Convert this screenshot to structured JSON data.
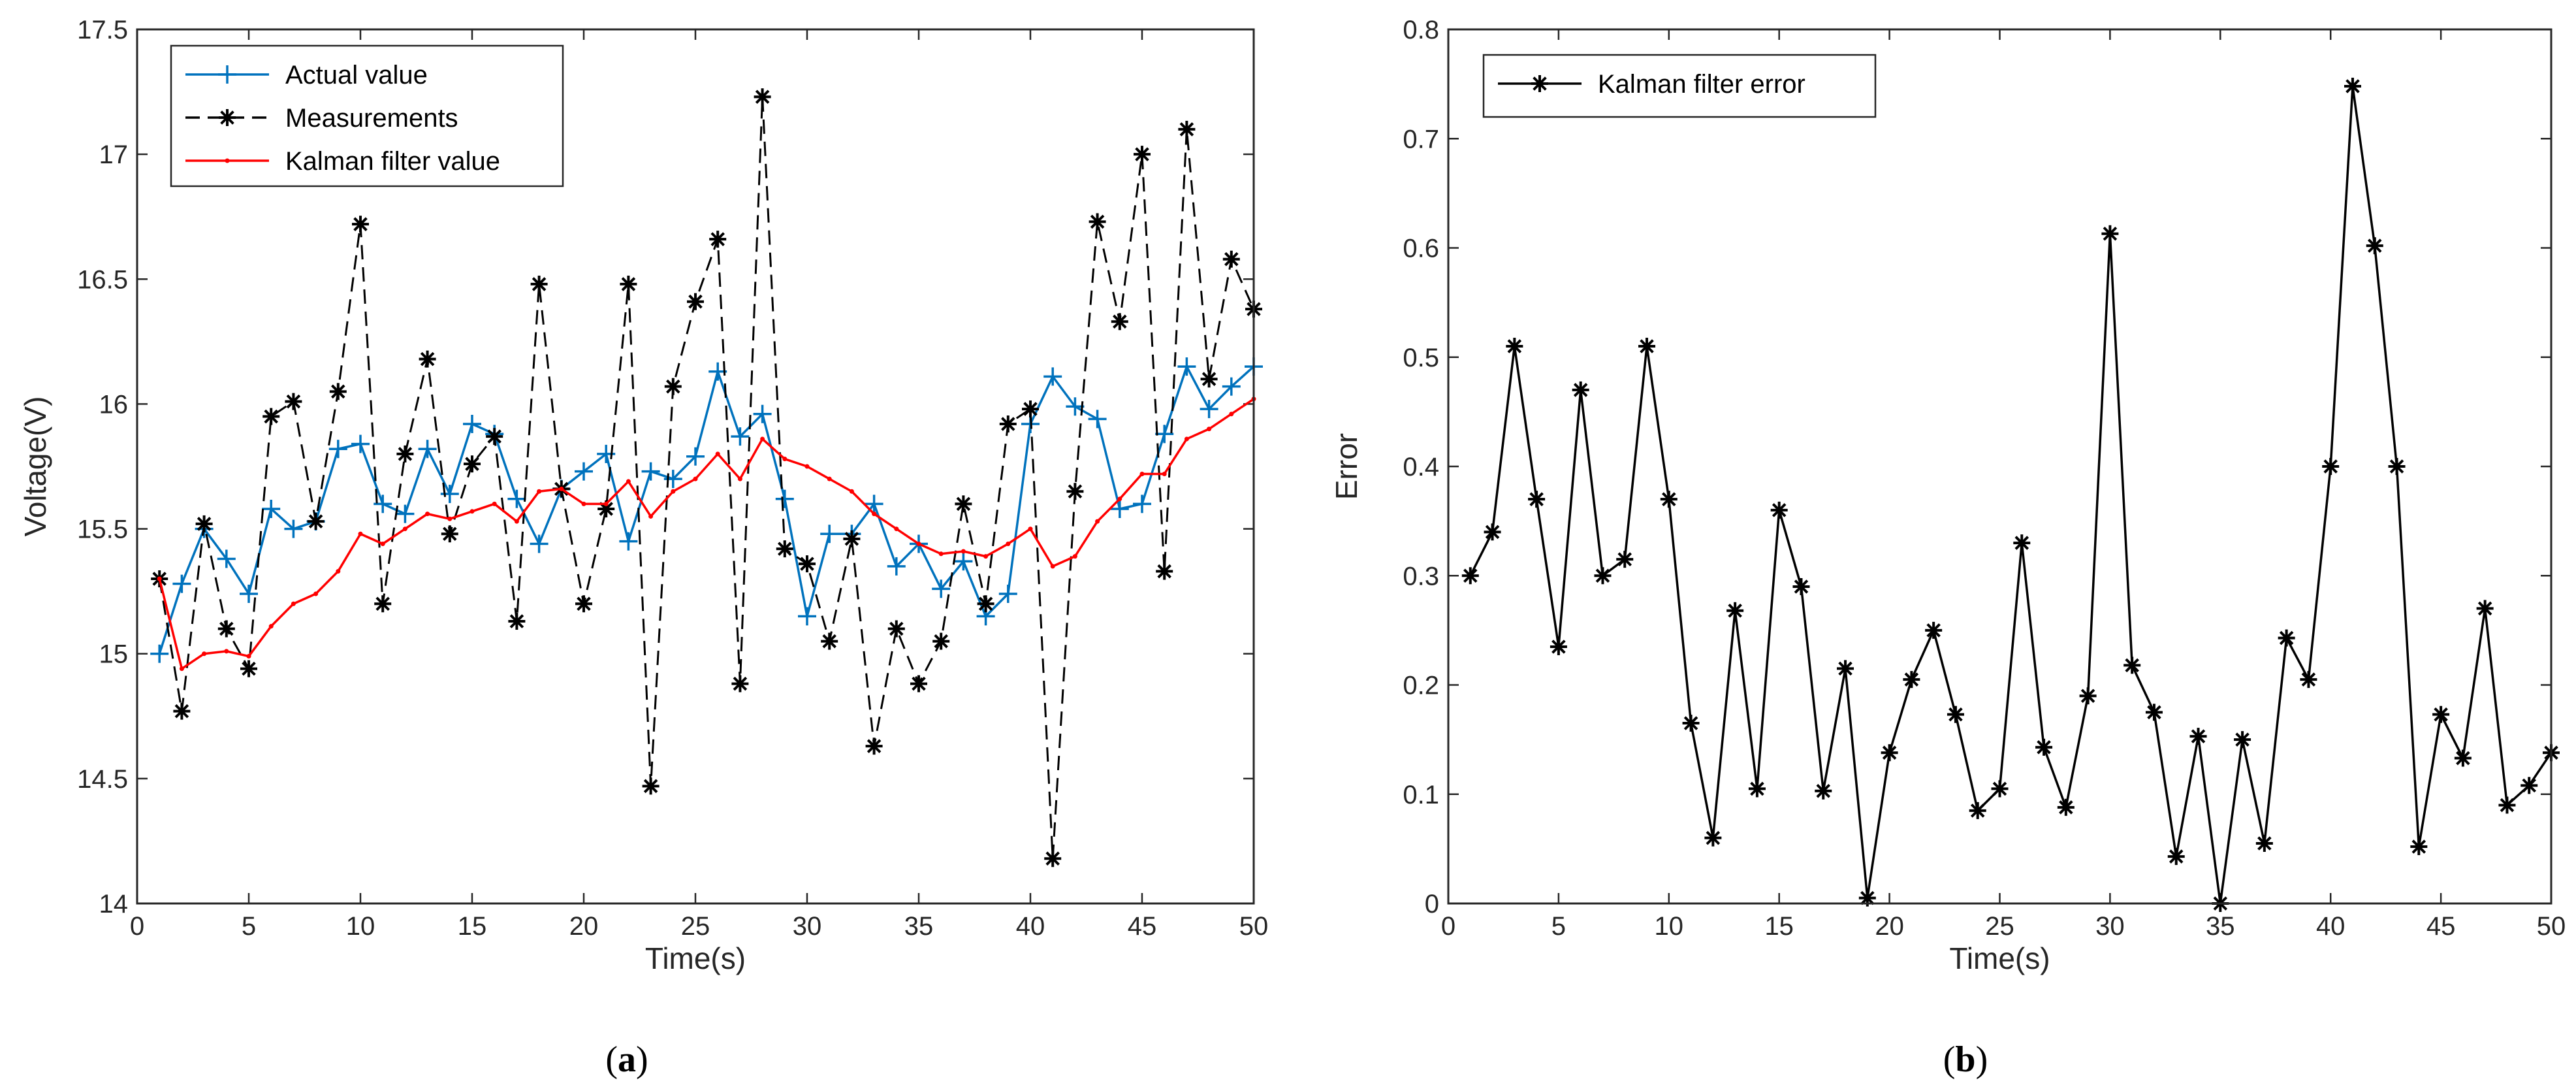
{
  "chart_data": [
    {
      "type": "line",
      "panel_label": "a",
      "caption_open": "(",
      "caption_close": ")",
      "xlabel": "Time(s)",
      "ylabel": "Voltage(V)",
      "xlim": [
        0,
        50
      ],
      "ylim": [
        14,
        17.5
      ],
      "xticks": [
        0,
        5,
        10,
        15,
        20,
        25,
        30,
        35,
        40,
        45,
        50
      ],
      "yticks": [
        14,
        14.5,
        15,
        15.5,
        16,
        16.5,
        17,
        17.5
      ],
      "ytick_labels": [
        "14",
        "14.5",
        "15",
        "15.5",
        "16",
        "16.5",
        "17",
        "17.5"
      ],
      "legend_location": "top-left",
      "x": [
        1,
        2,
        3,
        4,
        5,
        6,
        7,
        8,
        9,
        10,
        11,
        12,
        13,
        14,
        15,
        16,
        17,
        18,
        19,
        20,
        21,
        22,
        23,
        24,
        25,
        26,
        27,
        28,
        29,
        30,
        31,
        32,
        33,
        34,
        35,
        36,
        37,
        38,
        39,
        40,
        41,
        42,
        43,
        44,
        45,
        46,
        47,
        48,
        49,
        50
      ],
      "series": [
        {
          "name": "Actual value",
          "color": "#0072BD",
          "line_style": "solid",
          "marker": "plus",
          "values": [
            15.0,
            15.28,
            15.5,
            15.38,
            15.24,
            15.58,
            15.5,
            15.53,
            15.82,
            15.84,
            15.6,
            15.56,
            15.82,
            15.64,
            15.92,
            15.88,
            15.62,
            15.44,
            15.66,
            15.73,
            15.8,
            15.45,
            15.73,
            15.7,
            15.79,
            16.13,
            15.87,
            15.96,
            15.62,
            15.15,
            15.48,
            15.48,
            15.6,
            15.35,
            15.44,
            15.26,
            15.37,
            15.15,
            15.24,
            15.92,
            16.11,
            15.99,
            15.94,
            15.58,
            15.6,
            15.88,
            16.15,
            15.98,
            16.07,
            16.15
          ]
        },
        {
          "name": "Measurements",
          "color": "#000000",
          "line_style": "dashed",
          "marker": "asterisk",
          "values": [
            15.3,
            14.77,
            15.52,
            15.1,
            14.94,
            15.95,
            16.01,
            15.53,
            16.05,
            16.72,
            15.2,
            15.8,
            16.18,
            15.48,
            15.76,
            15.87,
            15.13,
            16.48,
            15.66,
            15.2,
            15.58,
            16.48,
            14.47,
            16.07,
            16.41,
            16.66,
            14.88,
            17.23,
            15.42,
            15.36,
            15.05,
            15.46,
            14.63,
            15.1,
            14.88,
            15.05,
            15.6,
            15.2,
            15.92,
            15.98,
            14.18,
            15.65,
            16.73,
            16.33,
            17.0,
            15.33,
            17.1,
            16.1,
            16.58,
            16.38
          ]
        },
        {
          "name": "Kalman filter value",
          "color": "#FF0000",
          "line_style": "solid",
          "marker": "dot",
          "values": [
            15.3,
            14.94,
            15.0,
            15.01,
            14.99,
            15.11,
            15.2,
            15.24,
            15.33,
            15.48,
            15.44,
            15.5,
            15.56,
            15.54,
            15.57,
            15.6,
            15.53,
            15.65,
            15.66,
            15.6,
            15.6,
            15.69,
            15.55,
            15.65,
            15.7,
            15.8,
            15.7,
            15.86,
            15.78,
            15.75,
            15.7,
            15.65,
            15.56,
            15.5,
            15.44,
            15.4,
            15.41,
            15.39,
            15.44,
            15.5,
            15.35,
            15.39,
            15.53,
            15.62,
            15.72,
            15.72,
            15.86,
            15.9,
            15.96,
            16.02
          ]
        }
      ]
    },
    {
      "type": "line",
      "panel_label": "b",
      "caption_open": "(",
      "caption_close": ")",
      "xlabel": "Time(s)",
      "ylabel": "Error",
      "xlim": [
        0,
        50
      ],
      "ylim": [
        0,
        0.8
      ],
      "xticks": [
        0,
        5,
        10,
        15,
        20,
        25,
        30,
        35,
        40,
        45,
        50
      ],
      "yticks": [
        0,
        0.1,
        0.2,
        0.3,
        0.4,
        0.5,
        0.6,
        0.7,
        0.8
      ],
      "ytick_labels": [
        "0",
        "0.1",
        "0.2",
        "0.3",
        "0.4",
        "0.5",
        "0.6",
        "0.7",
        "0.8"
      ],
      "legend_location": "top-left",
      "x": [
        1,
        2,
        3,
        4,
        5,
        6,
        7,
        8,
        9,
        10,
        11,
        12,
        13,
        14,
        15,
        16,
        17,
        18,
        19,
        20,
        21,
        22,
        23,
        24,
        25,
        26,
        27,
        28,
        29,
        30,
        31,
        32,
        33,
        34,
        35,
        36,
        37,
        38,
        39,
        40,
        41,
        42,
        43,
        44,
        45,
        46,
        47,
        48,
        49,
        50
      ],
      "series": [
        {
          "name": "Kalman filter error",
          "color": "#000000",
          "line_style": "solid",
          "marker": "asterisk",
          "values": [
            0.3,
            0.34,
            0.51,
            0.37,
            0.235,
            0.47,
            0.3,
            0.315,
            0.51,
            0.37,
            0.165,
            0.06,
            0.268,
            0.105,
            0.36,
            0.29,
            0.103,
            0.215,
            0.005,
            0.138,
            0.205,
            0.25,
            0.173,
            0.085,
            0.105,
            0.33,
            0.143,
            0.088,
            0.19,
            0.613,
            0.218,
            0.175,
            0.043,
            0.153,
            0.0,
            0.15,
            0.055,
            0.243,
            0.205,
            0.4,
            0.748,
            0.602,
            0.4,
            0.052,
            0.173,
            0.133,
            0.27,
            0.09,
            0.108,
            0.138
          ]
        }
      ]
    }
  ]
}
